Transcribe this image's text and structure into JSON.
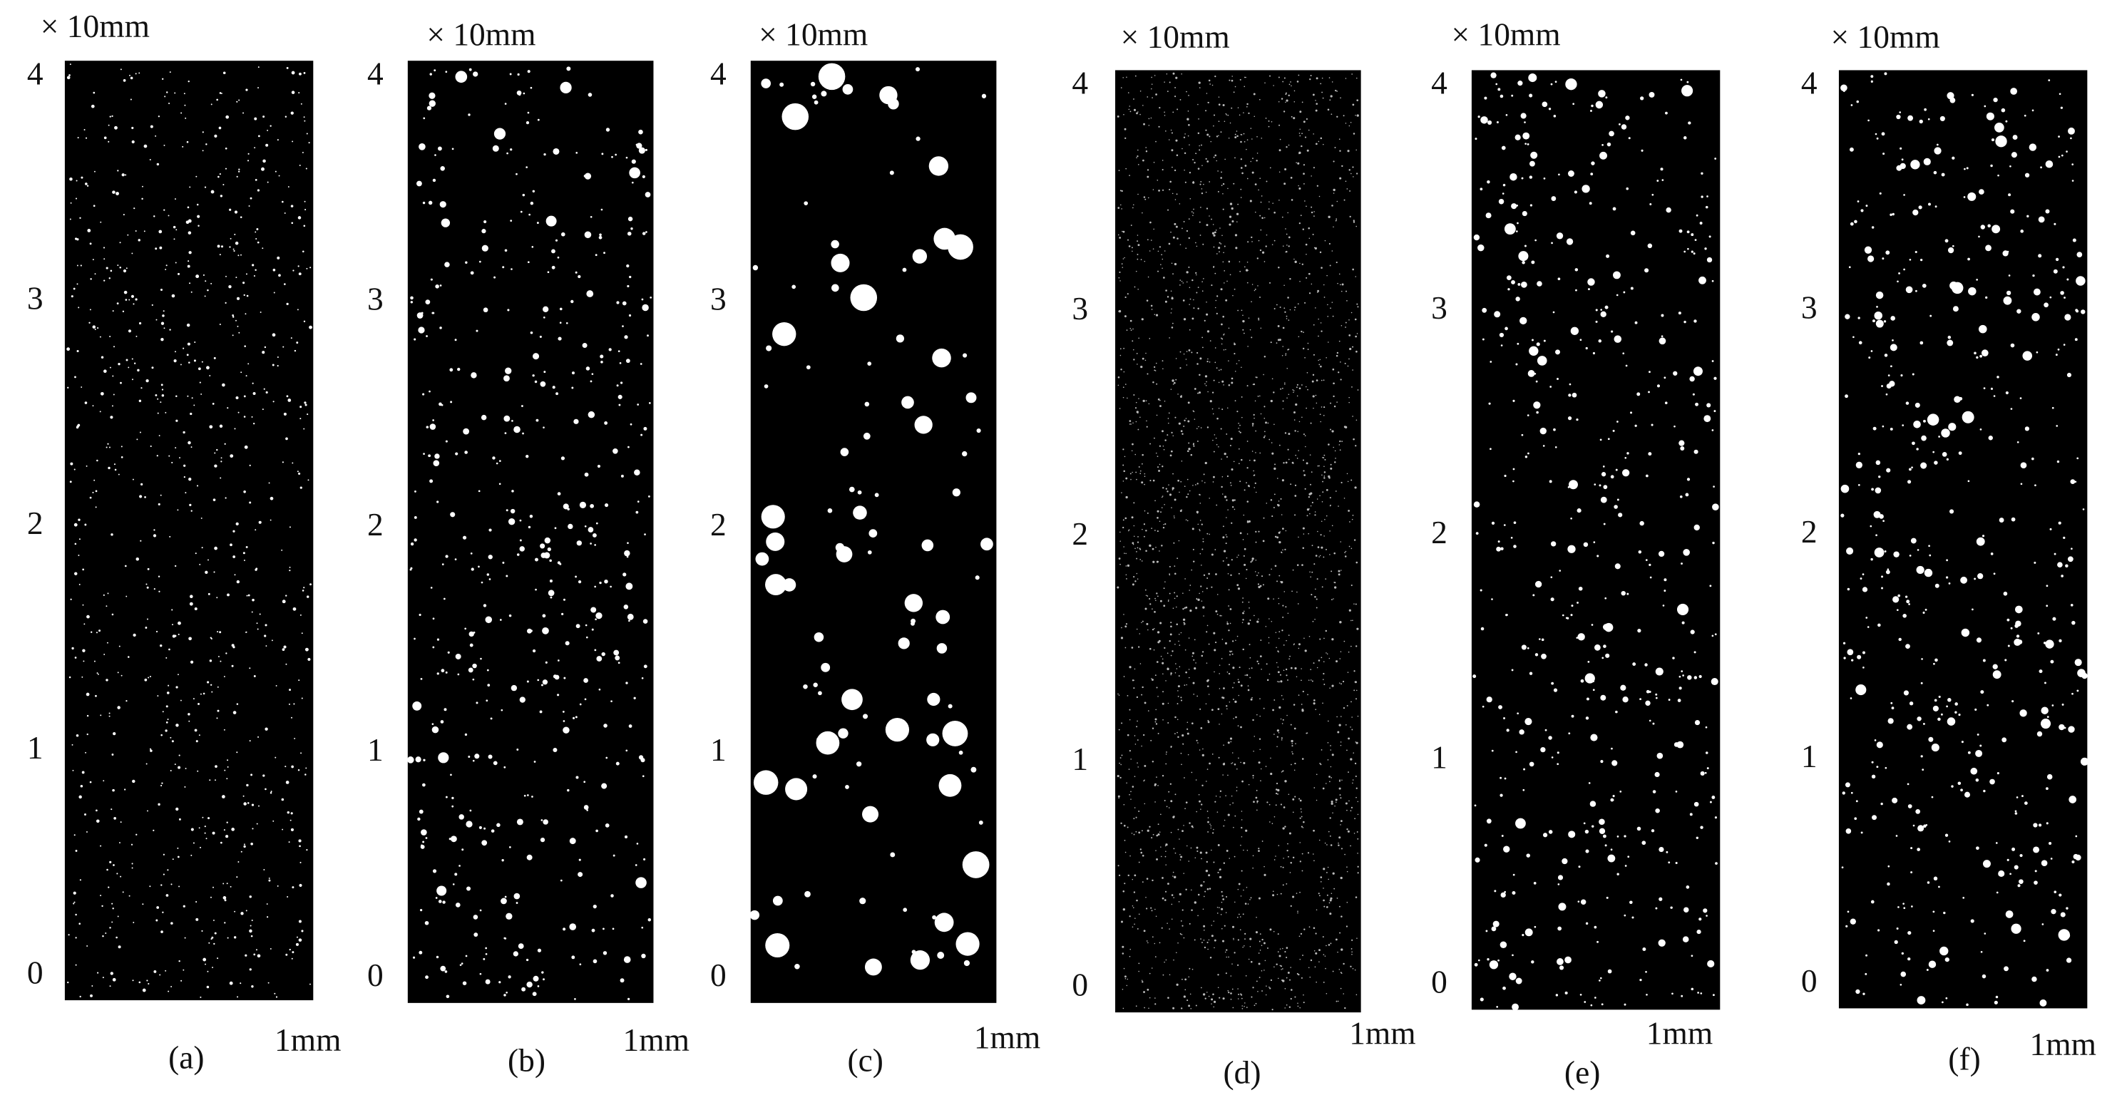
{
  "figure": {
    "panels": [
      {
        "unit": "× 10mm",
        "y_labels": [
          "4",
          "3",
          "2",
          "1",
          "0"
        ],
        "scale": "1mm",
        "caption": "(a)"
      },
      {
        "unit": "× 10mm",
        "y_labels": [
          "4",
          "3",
          "2",
          "1",
          "0"
        ],
        "scale": "1mm",
        "caption": "(b)"
      },
      {
        "unit": "× 10mm",
        "y_labels": [
          "4",
          "3",
          "2",
          "1",
          "0"
        ],
        "scale": "1mm",
        "caption": "(c)"
      },
      {
        "unit": "× 10mm",
        "y_labels": [
          "4",
          "3",
          "2",
          "1",
          "0"
        ],
        "scale": "1mm",
        "caption": "(d)"
      },
      {
        "unit": "× 10mm",
        "y_labels": [
          "4",
          "3",
          "2",
          "1",
          "0"
        ],
        "scale": "1mm",
        "caption": "(e)"
      },
      {
        "unit": "× 10mm",
        "y_labels": [
          "4",
          "3",
          "2",
          "1",
          "0"
        ],
        "scale": "1mm",
        "caption": "(f)"
      }
    ]
  }
}
